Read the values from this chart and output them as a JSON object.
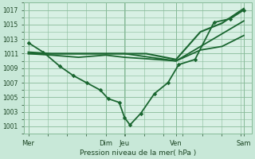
{
  "title": "Pression niveau de la mer( hPa )",
  "background_color": "#c8e8d8",
  "plot_bg_color": "#d8f0e4",
  "grid_color": "#88bb99",
  "line_color": "#1a6630",
  "ylim": [
    1000,
    1018
  ],
  "yticks": [
    1001,
    1003,
    1005,
    1007,
    1009,
    1011,
    1013,
    1015,
    1017
  ],
  "xlim": [
    0,
    8.4
  ],
  "days": [
    "Mer",
    "Dim",
    "Jeu",
    "Ven",
    "Sam"
  ],
  "day_positions": [
    0.15,
    3.0,
    3.7,
    5.6,
    8.1
  ],
  "series": [
    {
      "x": [
        0.15,
        0.7,
        1.3,
        1.8,
        2.3,
        2.8,
        3.1,
        3.5,
        3.7,
        3.9,
        4.3,
        4.8,
        5.3,
        5.7,
        6.3,
        7.0,
        7.6,
        8.1
      ],
      "y": [
        1012.5,
        1011.2,
        1009.3,
        1008.0,
        1007.0,
        1006.0,
        1004.8,
        1004.3,
        1002.2,
        1001.2,
        1002.8,
        1005.5,
        1007.0,
        1009.5,
        1010.2,
        1015.3,
        1015.8,
        1017.0
      ],
      "linewidth": 1.3,
      "markersize": 2.8
    },
    {
      "x": [
        0.15,
        1.0,
        2.0,
        3.0,
        3.7,
        4.5,
        5.6,
        6.5,
        7.3,
        8.1
      ],
      "y": [
        1011.2,
        1011.0,
        1011.0,
        1011.0,
        1011.0,
        1011.0,
        1010.2,
        1014.0,
        1015.2,
        1017.2
      ],
      "linewidth": 1.5,
      "markersize": 0
    },
    {
      "x": [
        0.15,
        1.0,
        2.0,
        3.0,
        3.7,
        4.5,
        5.6,
        6.5,
        7.3,
        8.1
      ],
      "y": [
        1011.0,
        1010.8,
        1010.5,
        1010.8,
        1010.5,
        1010.3,
        1010.0,
        1011.5,
        1012.0,
        1013.5
      ],
      "linewidth": 1.3,
      "markersize": 0
    },
    {
      "x": [
        0.15,
        3.7,
        5.6,
        8.1
      ],
      "y": [
        1011.0,
        1011.0,
        1010.0,
        1015.5
      ],
      "linewidth": 1.3,
      "markersize": 0
    }
  ]
}
